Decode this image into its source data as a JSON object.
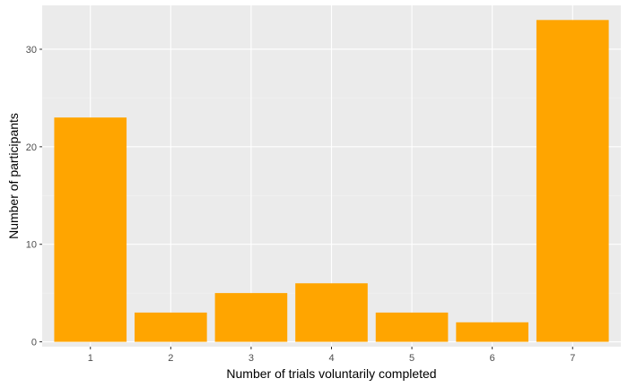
{
  "chart_data": {
    "type": "bar",
    "categories": [
      "1",
      "2",
      "3",
      "4",
      "5",
      "6",
      "7"
    ],
    "values": [
      23,
      3,
      5,
      6,
      3,
      2,
      33
    ],
    "title": "",
    "xlabel": "Number of trials voluntarily completed",
    "ylabel": "Number of participants",
    "ylim": [
      -0.5,
      34.5
    ],
    "yticks": [
      "0",
      "10",
      "20",
      "30"
    ],
    "grid": true,
    "legend": "none",
    "colors": {
      "bar": "#FFA500",
      "panel": "#EBEBEB",
      "grid_major": "#FFFFFF",
      "grid_minor": "#F2F2F2",
      "tick_text": "#4D4D4D",
      "axis_title": "#000000"
    }
  }
}
